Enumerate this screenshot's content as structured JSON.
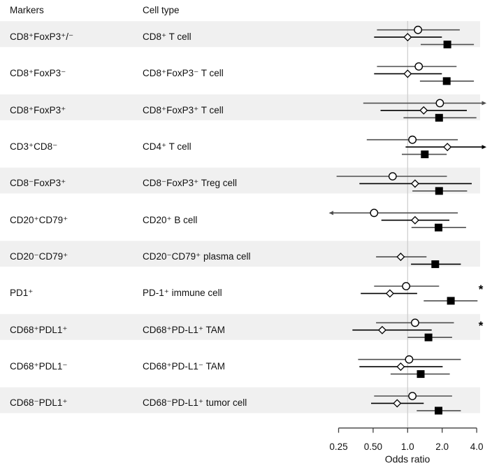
{
  "header": {
    "markers": "Markers",
    "cell_type": "Cell type"
  },
  "significance_symbol": "*",
  "colors": {
    "background": "#ffffff",
    "band": "#f0f0f0",
    "reference_line": "#cccccc",
    "axis": "#404040",
    "ci_line_primary": "#4f4f4f",
    "ci_line_secondary": "#000000",
    "marker_stroke": "#000000",
    "marker_fill_open": "#ffffff",
    "marker_fill_solid": "#000000"
  },
  "chart_data": {
    "type": "forest",
    "scale": "log2",
    "xlabel": "Odds ratio",
    "x_range": [
      0.25,
      4.0
    ],
    "reference_value": 1.0,
    "x_ticks": [
      {
        "value": 0.25,
        "label": "0.25"
      },
      {
        "value": 0.5,
        "label": "0.50"
      },
      {
        "value": 1.0,
        "label": "1.0"
      },
      {
        "value": 2.0,
        "label": "2.0"
      },
      {
        "value": 4.0,
        "label": "4.0"
      }
    ],
    "series_shapes": [
      "circle",
      "diamond",
      "square"
    ],
    "rows": [
      {
        "marker": "CD8⁺FoxP3⁺/⁻",
        "cell_type": "CD8⁺ T cell",
        "shaded": true,
        "significant": false,
        "points": [
          {
            "shape": "circle",
            "or": 1.23,
            "lo": 0.54,
            "hi": 2.85
          },
          {
            "shape": "diamond",
            "or": 1.0,
            "lo": 0.51,
            "hi": 1.99
          },
          {
            "shape": "square",
            "or": 2.22,
            "lo": 1.3,
            "hi": 3.78
          }
        ]
      },
      {
        "marker": "CD8⁺FoxP3⁻",
        "cell_type": "CD8⁺FoxP3⁻ T cell",
        "shaded": false,
        "significant": false,
        "points": [
          {
            "shape": "circle",
            "or": 1.25,
            "lo": 0.54,
            "hi": 2.67
          },
          {
            "shape": "diamond",
            "or": 1.0,
            "lo": 0.51,
            "hi": 1.99
          },
          {
            "shape": "square",
            "or": 2.19,
            "lo": 1.28,
            "hi": 3.78
          }
        ]
      },
      {
        "marker": "CD8⁺FoxP3⁺",
        "cell_type": "CD8⁺FoxP3⁺ T cell",
        "shaded": true,
        "significant": false,
        "points": [
          {
            "shape": "circle",
            "or": 1.91,
            "lo": 0.41,
            "hi": 4.65,
            "hi_arrow": true
          },
          {
            "shape": "diamond",
            "or": 1.38,
            "lo": 0.58,
            "hi": 3.28
          },
          {
            "shape": "square",
            "or": 1.88,
            "lo": 0.92,
            "hi": 3.98
          }
        ]
      },
      {
        "marker": "CD3⁺CD8⁻",
        "cell_type": "CD4⁺ T cell",
        "shaded": false,
        "significant": false,
        "points": [
          {
            "shape": "circle",
            "or": 1.1,
            "lo": 0.44,
            "hi": 2.74
          },
          {
            "shape": "diamond",
            "or": 2.22,
            "lo": 0.96,
            "hi": 4.65,
            "hi_arrow": true
          },
          {
            "shape": "square",
            "or": 1.41,
            "lo": 0.89,
            "hi": 2.19
          }
        ]
      },
      {
        "marker": "CD8⁻FoxP3⁺",
        "cell_type": "CD8⁻FoxP3⁺ Treg cell",
        "shaded": true,
        "significant": false,
        "points": [
          {
            "shape": "circle",
            "or": 0.74,
            "lo": 0.24,
            "hi": 2.2
          },
          {
            "shape": "diamond",
            "or": 1.16,
            "lo": 0.38,
            "hi": 3.62
          },
          {
            "shape": "square",
            "or": 1.88,
            "lo": 1.1,
            "hi": 3.3
          }
        ]
      },
      {
        "marker": "CD20⁺CD79⁺",
        "cell_type": "CD20⁺ B cell",
        "shaded": false,
        "significant": false,
        "points": [
          {
            "shape": "circle",
            "or": 0.51,
            "lo": 0.22,
            "hi": 2.74,
            "lo_arrow": true
          },
          {
            "shape": "diamond",
            "or": 1.16,
            "lo": 0.59,
            "hi": 2.31
          },
          {
            "shape": "square",
            "or": 1.86,
            "lo": 1.08,
            "hi": 3.23
          }
        ]
      },
      {
        "marker": "CD20⁻CD79⁺",
        "cell_type": "CD20⁻CD79⁺ plasma cell",
        "shaded": true,
        "significant": false,
        "points": [
          {
            "shape": "diamond",
            "or": 0.87,
            "lo": 0.53,
            "hi": 1.46
          },
          {
            "shape": "square",
            "or": 1.74,
            "lo": 1.07,
            "hi": 2.91
          }
        ]
      },
      {
        "marker": "PD1⁺",
        "cell_type": "PD-1⁺ immune cell",
        "shaded": false,
        "significant": true,
        "points": [
          {
            "shape": "circle",
            "or": 0.97,
            "lo": 0.51,
            "hi": 1.88
          },
          {
            "shape": "diamond",
            "or": 0.7,
            "lo": 0.39,
            "hi": 1.21
          },
          {
            "shape": "square",
            "or": 2.38,
            "lo": 1.38,
            "hi": 4.07
          }
        ]
      },
      {
        "marker": "CD68⁺PDL1⁺",
        "cell_type": "CD68⁺PD-L1⁺ TAM",
        "shaded": true,
        "significant": true,
        "points": [
          {
            "shape": "circle",
            "or": 1.16,
            "lo": 0.53,
            "hi": 2.53
          },
          {
            "shape": "diamond",
            "or": 0.6,
            "lo": 0.33,
            "hi": 1.62
          },
          {
            "shape": "square",
            "or": 1.52,
            "lo": 1.0,
            "hi": 2.44
          }
        ]
      },
      {
        "marker": "CD68⁺PDL1⁻",
        "cell_type": "CD68⁺PD-L1⁻ TAM",
        "shaded": false,
        "significant": false,
        "points": [
          {
            "shape": "circle",
            "or": 1.03,
            "lo": 0.37,
            "hi": 2.91
          },
          {
            "shape": "diamond",
            "or": 0.87,
            "lo": 0.38,
            "hi": 2.02
          },
          {
            "shape": "square",
            "or": 1.3,
            "lo": 0.71,
            "hi": 2.33
          }
        ]
      },
      {
        "marker": "CD68⁻PDL1⁺",
        "cell_type": "CD68⁻PD-L1⁺ tumor cell",
        "shaded": true,
        "significant": false,
        "points": [
          {
            "shape": "circle",
            "or": 1.1,
            "lo": 0.51,
            "hi": 2.44
          },
          {
            "shape": "diamond",
            "or": 0.81,
            "lo": 0.48,
            "hi": 1.38
          },
          {
            "shape": "square",
            "or": 1.86,
            "lo": 1.2,
            "hi": 2.91
          }
        ]
      }
    ]
  }
}
